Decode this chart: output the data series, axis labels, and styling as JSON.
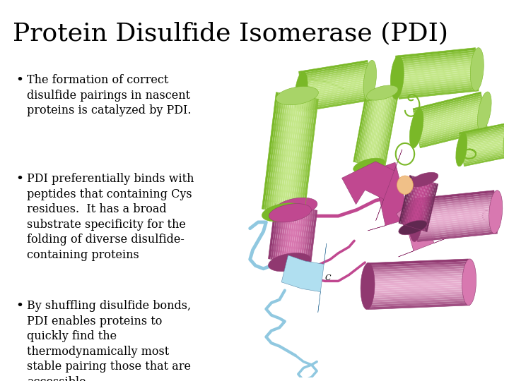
{
  "title": "Protein Disulfide Isomerase (PDI)",
  "title_fontsize": 26,
  "title_font": "serif",
  "background_color": "#ffffff",
  "text_color": "#000000",
  "bullet_points": [
    "The formation of correct\ndisulfide pairings in nascent\nproteins is catalyzed by PDI.",
    "PDI preferentially binds with\npeptides that containing Cys\nresidues.  It has a broad\nsubstrate specificity for the\nfolding of diverse disulfide-\ncontaining proteins",
    "By shuffling disulfide bonds,\nPDI enables proteins to\nquickly find the\nthermodynamically most\nstable pairing those that are\naccessible."
  ],
  "bullet_fontsize": 11.5,
  "bullet_font": "serif",
  "green_color": "#a8d468",
  "green_dark": "#7ab828",
  "green_light": "#c5e88a",
  "magenta_color": "#c04890",
  "magenta_light": "#d878b0",
  "magenta_dark": "#903870",
  "blue_color": "#90c8e0",
  "blue_light": "#b0dff0",
  "orange_color": "#e8a860",
  "orange_light": "#f0c088"
}
